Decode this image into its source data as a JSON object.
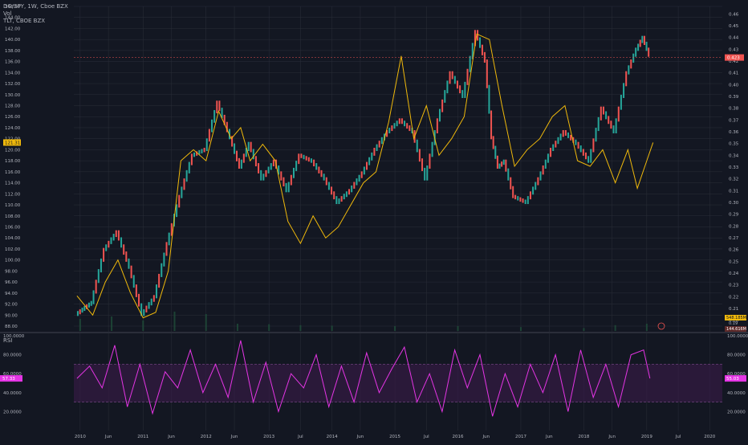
{
  "legend": {
    "main": "DG/SPY, 1W, Cboe BZX",
    "vol": "Vol",
    "overlay": "TLT, CBOE BZX"
  },
  "rsi_label": "RSI",
  "tags": {
    "left_overlay": "121.31",
    "right_price": "0.423",
    "right_vol": "548.185M",
    "right_vol2": "0.19",
    "right_vol3": "144.616M",
    "rsi_left": "57.33",
    "rsi_right": "55.03"
  },
  "colors": {
    "bg": "#131722",
    "grid": "#2a2e39",
    "up": "#26a69a",
    "down": "#ef5350",
    "overlay": "#f0b90b",
    "rsi": "#e535e5",
    "rsi_band": "#3a1a4a",
    "axis_text": "#b2b5be",
    "price_tag": "#ef5350",
    "overlay_tag": "#f0b90b"
  },
  "chart_data": [
    {
      "type": "line",
      "title": "DG/SPY, 1W, Cboe BZX",
      "x_ticks": [
        "2010",
        "Jun",
        "2011",
        "Jun",
        "2012",
        "Jun",
        "2013",
        "Jul",
        "2014",
        "Jun",
        "2015",
        "Jul",
        "2016",
        "Jun",
        "2017",
        "Jun",
        "2018",
        "Jun",
        "2019",
        "Jul",
        "2020"
      ],
      "left_axis_ticks": [
        "146.00",
        "144.00",
        "142.00",
        "140.00",
        "138.00",
        "136.00",
        "134.00",
        "132.00",
        "130.00",
        "128.00",
        "126.00",
        "124.00",
        "122.00",
        "120.00",
        "118.00",
        "116.00",
        "114.00",
        "112.00",
        "110.00",
        "108.00",
        "106.00",
        "104.00",
        "102.00",
        "100.00",
        "98.00",
        "96.00",
        "94.00",
        "92.00",
        "90.00",
        "88.00"
      ],
      "right_axis_ticks": [
        "0.46",
        "0.45",
        "0.44",
        "0.43",
        "0.42",
        "0.41",
        "0.40",
        "0.39",
        "0.38",
        "0.37",
        "0.36",
        "0.35",
        "0.34",
        "0.33",
        "0.32",
        "0.31",
        "0.30",
        "0.29",
        "0.28",
        "0.27",
        "0.26",
        "0.25",
        "0.24",
        "0.23",
        "0.22",
        "0.21",
        "0.20"
      ],
      "series": [
        {
          "name": "DG/SPY",
          "axis": "right",
          "x": [
            2009.95,
            2010.2,
            2010.4,
            2010.6,
            2010.8,
            2011.0,
            2011.2,
            2011.4,
            2011.6,
            2011.8,
            2012.0,
            2012.2,
            2012.4,
            2012.55,
            2012.7,
            2012.9,
            2013.1,
            2013.3,
            2013.5,
            2013.7,
            2013.9,
            2014.1,
            2014.3,
            2014.5,
            2014.7,
            2014.9,
            2015.1,
            2015.3,
            2015.5,
            2015.7,
            2015.9,
            2016.1,
            2016.3,
            2016.45,
            2016.55,
            2016.65,
            2016.75,
            2016.9,
            2017.1,
            2017.3,
            2017.5,
            2017.7,
            2017.9,
            2018.1,
            2018.3,
            2018.5,
            2018.7,
            2018.85,
            2018.95,
            2019.05
          ],
          "values": [
            0.205,
            0.215,
            0.26,
            0.275,
            0.245,
            0.205,
            0.22,
            0.265,
            0.305,
            0.34,
            0.345,
            0.385,
            0.355,
            0.33,
            0.35,
            0.32,
            0.335,
            0.31,
            0.34,
            0.335,
            0.32,
            0.3,
            0.31,
            0.325,
            0.345,
            0.36,
            0.37,
            0.36,
            0.32,
            0.37,
            0.41,
            0.39,
            0.445,
            0.42,
            0.355,
            0.33,
            0.335,
            0.305,
            0.3,
            0.32,
            0.345,
            0.36,
            0.35,
            0.335,
            0.38,
            0.36,
            0.41,
            0.43,
            0.44,
            0.425
          ]
        },
        {
          "name": "TLT, CBOE BZX",
          "axis": "left",
          "x": [
            2009.95,
            2010.2,
            2010.4,
            2010.6,
            2010.8,
            2011.0,
            2011.2,
            2011.4,
            2011.6,
            2011.8,
            2012.0,
            2012.2,
            2012.4,
            2012.55,
            2012.7,
            2012.9,
            2013.1,
            2013.3,
            2013.5,
            2013.7,
            2013.9,
            2014.1,
            2014.3,
            2014.5,
            2014.7,
            2014.9,
            2015.1,
            2015.3,
            2015.5,
            2015.7,
            2015.9,
            2016.1,
            2016.3,
            2016.5,
            2016.7,
            2016.9,
            2017.1,
            2017.3,
            2017.5,
            2017.7,
            2017.9,
            2018.1,
            2018.3,
            2018.5,
            2018.7,
            2018.85,
            2019.0,
            2019.1
          ],
          "values": [
            93.5,
            90.0,
            96.0,
            100.0,
            94.0,
            89.5,
            90.5,
            98.0,
            118.0,
            120.0,
            118.0,
            127.0,
            122.0,
            124.0,
            118.0,
            121.0,
            118.0,
            107.0,
            103.0,
            108.0,
            104.0,
            106.0,
            110.0,
            114.0,
            116.0,
            125.0,
            137.0,
            122.0,
            128.0,
            119.0,
            122.0,
            126.0,
            141.0,
            140.0,
            128.0,
            117.0,
            120.0,
            122.0,
            126.0,
            128.0,
            118.0,
            117.0,
            120.0,
            114.0,
            120.0,
            113.0,
            118.0,
            121.31
          ]
        },
        {
          "name": "Vol",
          "axis": "volume",
          "x": [
            2010.0,
            2010.5,
            2011.0,
            2011.5,
            2012.0,
            2012.5,
            2013.0,
            2013.5,
            2014.0,
            2015.0,
            2016.0,
            2017.0,
            2018.0,
            2018.5,
            2019.0
          ],
          "values": [
            0.25,
            0.3,
            0.22,
            0.4,
            0.35,
            0.15,
            0.14,
            0.12,
            0.11,
            0.1,
            0.1,
            0.08,
            0.06,
            0.12,
            0.15
          ]
        }
      ]
    },
    {
      "type": "line",
      "title": "RSI",
      "axis_ticks": [
        "100.0000",
        "80.0000",
        "60.0000",
        "40.0000",
        "20.0000"
      ],
      "band": [
        30,
        70
      ],
      "series": [
        {
          "name": "RSI",
          "x": [
            2009.95,
            2010.15,
            2010.35,
            2010.55,
            2010.75,
            2010.95,
            2011.15,
            2011.35,
            2011.55,
            2011.75,
            2011.95,
            2012.15,
            2012.35,
            2012.55,
            2012.75,
            2012.95,
            2013.15,
            2013.35,
            2013.55,
            2013.75,
            2013.95,
            2014.15,
            2014.35,
            2014.55,
            2014.75,
            2014.95,
            2015.15,
            2015.35,
            2015.55,
            2015.75,
            2015.95,
            2016.15,
            2016.35,
            2016.55,
            2016.75,
            2016.95,
            2017.15,
            2017.35,
            2017.55,
            2017.75,
            2017.95,
            2018.15,
            2018.35,
            2018.55,
            2018.75,
            2018.95,
            2019.05
          ],
          "values": [
            55,
            68,
            45,
            90,
            25,
            70,
            18,
            62,
            45,
            85,
            40,
            70,
            35,
            95,
            30,
            72,
            20,
            60,
            45,
            80,
            25,
            68,
            30,
            82,
            40,
            65,
            88,
            30,
            60,
            20,
            85,
            45,
            80,
            15,
            60,
            25,
            70,
            40,
            80,
            20,
            85,
            35,
            70,
            25,
            80,
            85,
            55
          ]
        }
      ]
    }
  ]
}
